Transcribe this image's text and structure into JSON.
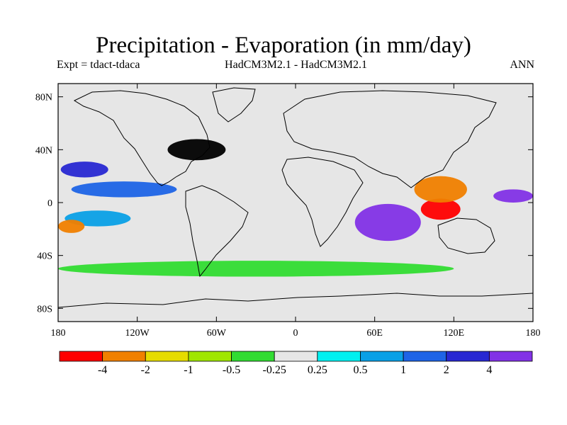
{
  "title": "Precipitation - Evaporation (in mm/day)",
  "subtitle_left": "Expt = tdact-tdaca",
  "subtitle_center": "HadCM3M2.1 - HadCM3M2.1",
  "subtitle_right": "ANN",
  "map": {
    "projection": "cylindrical-equidistant",
    "lon_range": [
      -180,
      180
    ],
    "lat_range": [
      -90,
      90
    ],
    "ocean_background_color": "#e6e6e6",
    "coastline_color": "#000000",
    "y_ticks": [
      {
        "lat": 80,
        "label": "80N"
      },
      {
        "lat": 40,
        "label": "40N"
      },
      {
        "lat": 0,
        "label": "0"
      },
      {
        "lat": -40,
        "label": "40S"
      },
      {
        "lat": -80,
        "label": "80S"
      }
    ],
    "x_ticks": [
      {
        "lon": -180,
        "label": "180"
      },
      {
        "lon": -120,
        "label": "120W"
      },
      {
        "lon": -60,
        "label": "60W"
      },
      {
        "lon": 0,
        "label": "0"
      },
      {
        "lon": 60,
        "label": "60E"
      },
      {
        "lon": 120,
        "label": "120E"
      },
      {
        "lon": 180,
        "label": "180"
      }
    ],
    "regions": [
      {
        "name": "north-atlantic-band",
        "lon": -75,
        "lat": 40,
        "rlon": 22,
        "rlat": 8,
        "class": 11
      },
      {
        "name": "tropical-pacific-band",
        "lon": -130,
        "lat": 10,
        "rlon": 40,
        "rlat": 6,
        "class": 8
      },
      {
        "name": "south-pacific-cyan",
        "lon": -150,
        "lat": -12,
        "rlon": 25,
        "rlat": 6,
        "class": 7
      },
      {
        "name": "north-pacific-blue",
        "lon": -160,
        "lat": 25,
        "rlon": 18,
        "rlat": 6,
        "class": 9
      },
      {
        "name": "indian-ocean-blue",
        "lon": 70,
        "lat": -15,
        "rlon": 25,
        "rlat": 14,
        "class": 10
      },
      {
        "name": "maritime-continent-red",
        "lon": 110,
        "lat": -5,
        "rlon": 15,
        "rlat": 8,
        "class": 0
      },
      {
        "name": "west-pacific-orange",
        "lon": 110,
        "lat": 10,
        "rlon": 20,
        "rlat": 10,
        "class": 1
      },
      {
        "name": "south-east-pacific-orange",
        "lon": -170,
        "lat": -18,
        "rlon": 10,
        "rlat": 5,
        "class": 1
      },
      {
        "name": "east-pacific-blue",
        "lon": 165,
        "lat": 5,
        "rlon": 15,
        "rlat": 5,
        "class": 10
      },
      {
        "name": "southern-ocean-green",
        "lon": -30,
        "lat": -50,
        "rlon": 150,
        "rlat": 6,
        "class": 4
      }
    ]
  },
  "colorbar": {
    "colors": [
      "#ff0000",
      "#f08000",
      "#e6dc00",
      "#a0e600",
      "#32dc32",
      "#e6e6e6",
      "#00f0f0",
      "#0aa0e6",
      "#1e64e6",
      "#2828d2",
      "#8232e6"
    ],
    "labels": [
      "-4",
      "-2",
      "-1",
      "-0.5",
      "-0.25",
      "0.25",
      "0.5",
      "1",
      "2",
      "4"
    ]
  }
}
